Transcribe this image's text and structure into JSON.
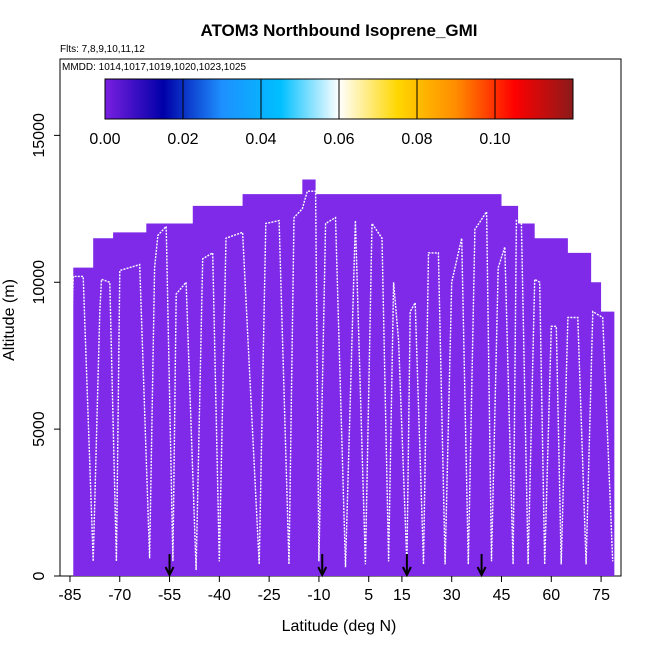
{
  "chart_data": {
    "type": "heatmap",
    "title": "ATOM3 Northbound Isoprene_GMI",
    "flights_label": "Flts: 7,8,9,10,11,12",
    "mmdd_label": "MMDD: 1014,1017,1019,1020,1023,1025",
    "xlabel": "Latitude (deg N)",
    "ylabel": "Altitude (m)",
    "xlim": [
      -88,
      81
    ],
    "ylim": [
      0,
      17600
    ],
    "xticks": [
      -85,
      -70,
      -55,
      -40,
      -25,
      -10,
      5,
      15,
      30,
      45,
      60,
      75
    ],
    "yticks": [
      0,
      5000,
      10000,
      15000
    ],
    "colorbar": {
      "range": [
        0,
        0.12
      ],
      "ticks": [
        0,
        0.02,
        0.04,
        0.06,
        0.08,
        0.1
      ],
      "tick_labels": [
        "0.00",
        "0.02",
        "0.04",
        "0.06",
        "0.08",
        "0.10"
      ],
      "colors": [
        "#7a1fe0",
        "#0000a8",
        "#1e90ff",
        "#00bfff",
        "#ffffff",
        "#ffd700",
        "#ff8c00",
        "#ff0000",
        "#8b1a1a"
      ]
    },
    "field_color": "#7f2ae8",
    "curtain_top": [
      [
        -84,
        10500
      ],
      [
        -78,
        10500
      ],
      [
        -78,
        11500
      ],
      [
        -72,
        11500
      ],
      [
        -72,
        11700
      ],
      [
        -62,
        11700
      ],
      [
        -62,
        12000
      ],
      [
        -48,
        12000
      ],
      [
        -48,
        12600
      ],
      [
        -33,
        12600
      ],
      [
        -33,
        13000
      ],
      [
        -15,
        13000
      ],
      [
        -15,
        13500
      ],
      [
        -11,
        13500
      ],
      [
        -11,
        13000
      ],
      [
        45,
        13000
      ],
      [
        45,
        12600
      ],
      [
        50,
        12600
      ],
      [
        50,
        12000
      ],
      [
        55,
        12000
      ],
      [
        55,
        11500
      ],
      [
        65,
        11500
      ],
      [
        65,
        11000
      ],
      [
        72,
        11000
      ],
      [
        72,
        10000
      ],
      [
        75,
        10000
      ],
      [
        75,
        9000
      ],
      [
        79,
        9000
      ],
      [
        79,
        7000
      ]
    ],
    "flight_track": [
      [
        -84.5,
        8500
      ],
      [
        -84,
        10200
      ],
      [
        -81,
        10200
      ],
      [
        -78,
        500
      ],
      [
        -76,
        9000
      ],
      [
        -75.5,
        10100
      ],
      [
        -73,
        10000
      ],
      [
        -71,
        500
      ],
      [
        -70,
        10400
      ],
      [
        -64,
        10600
      ],
      [
        -61,
        600
      ],
      [
        -59.5,
        10500
      ],
      [
        -58.5,
        11600
      ],
      [
        -56,
        11900
      ],
      [
        -54,
        500
      ],
      [
        -53,
        9600
      ],
      [
        -50,
        10000
      ],
      [
        -47,
        200
      ],
      [
        -45,
        10800
      ],
      [
        -42,
        11000
      ],
      [
        -40,
        500
      ],
      [
        -38,
        11500
      ],
      [
        -33,
        11700
      ],
      [
        -28,
        400
      ],
      [
        -26,
        12000
      ],
      [
        -22,
        12100
      ],
      [
        -19,
        400
      ],
      [
        -17.5,
        12200
      ],
      [
        -15,
        12500
      ],
      [
        -13.5,
        13100
      ],
      [
        -11,
        13100
      ],
      [
        -10,
        500
      ],
      [
        -8,
        12000
      ],
      [
        -5,
        12200
      ],
      [
        -2,
        300
      ],
      [
        1,
        12100
      ],
      [
        4,
        400
      ],
      [
        6,
        12000
      ],
      [
        9,
        11500
      ],
      [
        11,
        500
      ],
      [
        12.5,
        10000
      ],
      [
        14,
        8000
      ],
      [
        16.5,
        400
      ],
      [
        17.5,
        9000
      ],
      [
        19,
        9300
      ],
      [
        21.5,
        400
      ],
      [
        23,
        11000
      ],
      [
        26,
        11000
      ],
      [
        28,
        400
      ],
      [
        30,
        10000
      ],
      [
        33,
        11500
      ],
      [
        35,
        400
      ],
      [
        37,
        11800
      ],
      [
        40.5,
        12400
      ],
      [
        42,
        500
      ],
      [
        44,
        10500
      ],
      [
        46,
        11200
      ],
      [
        48.5,
        400
      ],
      [
        49.5,
        12100
      ],
      [
        51,
        12000
      ],
      [
        53,
        400
      ],
      [
        55,
        10100
      ],
      [
        56.5,
        10000
      ],
      [
        58,
        400
      ],
      [
        60,
        8500
      ],
      [
        61.5,
        8500
      ],
      [
        63,
        400
      ],
      [
        65,
        8800
      ],
      [
        68,
        8800
      ],
      [
        70.5,
        400
      ],
      [
        72.5,
        9000
      ],
      [
        75.5,
        8800
      ],
      [
        78.5,
        500
      ]
    ],
    "takeoff_arrows": [
      -55,
      -9,
      16.5,
      39
    ]
  }
}
